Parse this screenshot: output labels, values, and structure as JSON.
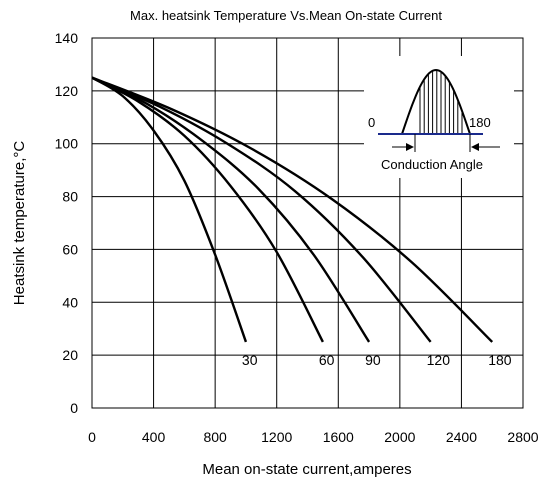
{
  "chart_data": {
    "type": "line",
    "title": "Max. heatsink Temperature Vs.Mean On-state Current",
    "xlabel": "Mean on-state current,amperes",
    "ylabel": "Heatsink temperature,°C",
    "xlim": [
      0,
      2800
    ],
    "ylim": [
      0,
      140
    ],
    "xticks": [
      0,
      400,
      800,
      1200,
      1600,
      2000,
      2400,
      2800
    ],
    "yticks": [
      0,
      20,
      40,
      60,
      80,
      100,
      120,
      140
    ],
    "grid": true,
    "series": [
      {
        "name": "30",
        "x": [
          0,
          200,
          400,
          600,
          800,
          1000
        ],
        "y": [
          125,
          118,
          105,
          86,
          58,
          25
        ]
      },
      {
        "name": "60",
        "x": [
          0,
          300,
          600,
          900,
          1200,
          1500
        ],
        "y": [
          125,
          116,
          103,
          84,
          59,
          25
        ]
      },
      {
        "name": "90",
        "x": [
          0,
          360,
          720,
          1080,
          1440,
          1800
        ],
        "y": [
          125,
          115,
          101,
          83,
          58,
          25
        ]
      },
      {
        "name": "120",
        "x": [
          0,
          440,
          880,
          1320,
          1760,
          2200
        ],
        "y": [
          125,
          114,
          100,
          82,
          57,
          25
        ]
      },
      {
        "name": "180",
        "x": [
          0,
          520,
          1040,
          1560,
          2080,
          2600
        ],
        "y": [
          125,
          113,
          98,
          79,
          55,
          25
        ]
      }
    ],
    "inset": {
      "label_start": "0",
      "label_end": "180",
      "caption": "Conduction Angle"
    }
  }
}
